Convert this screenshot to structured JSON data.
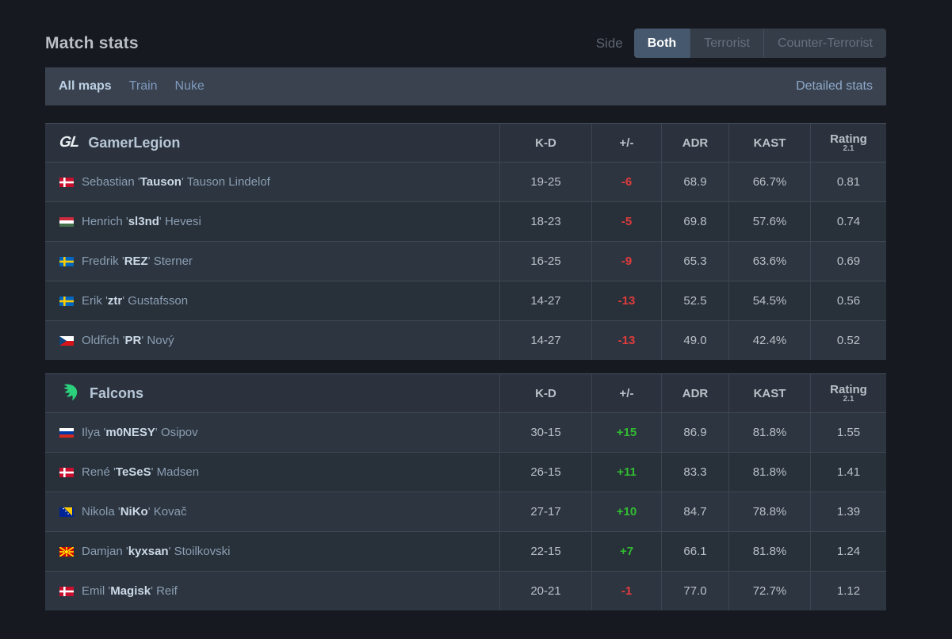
{
  "header": {
    "title": "Match stats",
    "side_label": "Side",
    "side_options": [
      {
        "label": "Both",
        "active": true
      },
      {
        "label": "Terrorist",
        "active": false
      },
      {
        "label": "Counter-Terrorist",
        "active": false
      }
    ]
  },
  "tabs": {
    "items": [
      {
        "label": "All maps",
        "active": true
      },
      {
        "label": "Train",
        "active": false
      },
      {
        "label": "Nuke",
        "active": false
      }
    ],
    "detailed_stats_label": "Detailed stats"
  },
  "columns": [
    {
      "key": "kd",
      "label": "K-D"
    },
    {
      "key": "plus-minus",
      "label": "+/-"
    },
    {
      "key": "adr",
      "label": "ADR"
    },
    {
      "key": "kast",
      "label": "KAST"
    }
  ],
  "rating_column": {
    "label": "Rating",
    "sub": "2.1"
  },
  "colors": {
    "positive_diff": "#31bd31",
    "negative_diff": "#e03c3c",
    "active_side_bg": "#46586d",
    "tab_bar_bg": "#3a4250",
    "falcons_brand": "#2bd07c"
  },
  "tables": [
    {
      "team": "GamerLegion",
      "logo": "gamerlegion",
      "players": [
        {
          "flag": "dk",
          "flag_name": "denmark",
          "first": "Sebastian",
          "nick": "Tauson",
          "last": "Tauson Lindelof",
          "kd": "19-25",
          "diff": "-6",
          "adr": "68.9",
          "kast": "66.7%",
          "rating": "0.81"
        },
        {
          "flag": "hu",
          "flag_name": "hungary",
          "first": "Henrich",
          "nick": "sl3nd",
          "last": "Hevesi",
          "kd": "18-23",
          "diff": "-5",
          "adr": "69.8",
          "kast": "57.6%",
          "rating": "0.74"
        },
        {
          "flag": "se",
          "flag_name": "sweden",
          "first": "Fredrik",
          "nick": "REZ",
          "last": "Sterner",
          "kd": "16-25",
          "diff": "-9",
          "adr": "65.3",
          "kast": "63.6%",
          "rating": "0.69"
        },
        {
          "flag": "se",
          "flag_name": "sweden",
          "first": "Erik",
          "nick": "ztr",
          "last": "Gustafsson",
          "kd": "14-27",
          "diff": "-13",
          "adr": "52.5",
          "kast": "54.5%",
          "rating": "0.56"
        },
        {
          "flag": "cz",
          "flag_name": "czechia",
          "first": "Oldřich",
          "nick": "PR",
          "last": "Nový",
          "kd": "14-27",
          "diff": "-13",
          "adr": "49.0",
          "kast": "42.4%",
          "rating": "0.52"
        }
      ]
    },
    {
      "team": "Falcons",
      "logo": "falcons",
      "players": [
        {
          "flag": "ru",
          "flag_name": "russia",
          "first": "Ilya",
          "nick": "m0NESY",
          "last": "Osipov",
          "kd": "30-15",
          "diff": "+15",
          "adr": "86.9",
          "kast": "81.8%",
          "rating": "1.55"
        },
        {
          "flag": "dk",
          "flag_name": "denmark",
          "first": "René",
          "nick": "TeSeS",
          "last": "Madsen",
          "kd": "26-15",
          "diff": "+11",
          "adr": "83.3",
          "kast": "81.8%",
          "rating": "1.41"
        },
        {
          "flag": "ba",
          "flag_name": "bosnia-herzegovina",
          "first": "Nikola",
          "nick": "NiKo",
          "last": "Kovač",
          "kd": "27-17",
          "diff": "+10",
          "adr": "84.7",
          "kast": "78.8%",
          "rating": "1.39"
        },
        {
          "flag": "mk",
          "flag_name": "north-macedonia",
          "first": "Damjan",
          "nick": "kyxsan",
          "last": "Stoilkovski",
          "kd": "22-15",
          "diff": "+7",
          "adr": "66.1",
          "kast": "81.8%",
          "rating": "1.24"
        },
        {
          "flag": "dk",
          "flag_name": "denmark",
          "first": "Emil",
          "nick": "Magisk",
          "last": "Reif",
          "kd": "20-21",
          "diff": "-1",
          "adr": "77.0",
          "kast": "72.7%",
          "rating": "1.12"
        }
      ]
    }
  ]
}
